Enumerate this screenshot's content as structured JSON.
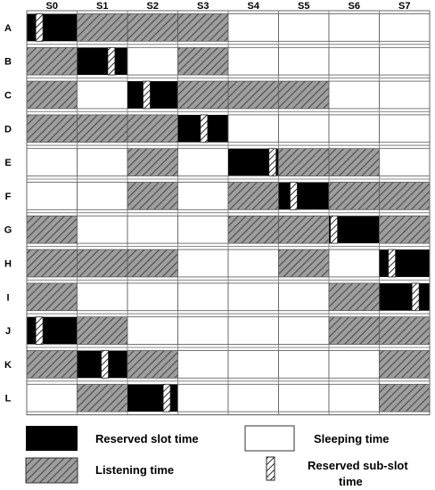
{
  "columns": [
    "S0",
    "S1",
    "S2",
    "S3",
    "S4",
    "S5",
    "S6",
    "S7"
  ],
  "rows": [
    {
      "label": "A",
      "cells": [
        "reserved",
        "listening",
        "listening",
        "listening",
        "sleeping",
        "sleeping",
        "sleeping",
        "sleeping"
      ],
      "subslot_col": 0,
      "subslot_pos": 0.25
    },
    {
      "label": "B",
      "cells": [
        "listening",
        "reserved",
        "sleeping",
        "listening",
        "sleeping",
        "sleeping",
        "sleeping",
        "sleeping"
      ],
      "subslot_col": 1,
      "subslot_pos": 0.68
    },
    {
      "label": "C",
      "cells": [
        "listening",
        "sleeping",
        "reserved",
        "listening",
        "listening",
        "listening",
        "sleeping",
        "sleeping"
      ],
      "subslot_col": 2,
      "subslot_pos": 0.38
    },
    {
      "label": "D",
      "cells": [
        "listening",
        "listening",
        "listening",
        "reserved",
        "sleeping",
        "sleeping",
        "sleeping",
        "sleeping"
      ],
      "subslot_col": 3,
      "subslot_pos": 0.52
    },
    {
      "label": "E",
      "cells": [
        "sleeping",
        "sleeping",
        "listening",
        "sleeping",
        "reserved",
        "listening",
        "listening",
        "sleeping"
      ],
      "subslot_col": 4,
      "subslot_pos": 0.88
    },
    {
      "label": "F",
      "cells": [
        "sleeping",
        "sleeping",
        "listening",
        "sleeping",
        "listening",
        "reserved",
        "listening",
        "listening"
      ],
      "subslot_col": 5,
      "subslot_pos": 0.3
    },
    {
      "label": "G",
      "cells": [
        "listening",
        "sleeping",
        "sleeping",
        "sleeping",
        "listening",
        "listening",
        "reserved",
        "listening"
      ],
      "subslot_col": 6,
      "subslot_pos": 0.1
    },
    {
      "label": "H",
      "cells": [
        "listening",
        "listening",
        "listening",
        "sleeping",
        "sleeping",
        "listening",
        "sleeping",
        "reserved"
      ],
      "subslot_col": 7,
      "subslot_pos": 0.25
    },
    {
      "label": "I",
      "cells": [
        "listening",
        "sleeping",
        "sleeping",
        "sleeping",
        "sleeping",
        "sleeping",
        "listening",
        "reserved"
      ],
      "subslot_col": 7,
      "subslot_pos": 0.72
    },
    {
      "label": "J",
      "cells": [
        "reserved",
        "listening",
        "sleeping",
        "sleeping",
        "sleeping",
        "sleeping",
        "listening",
        "listening"
      ],
      "subslot_col": 0,
      "subslot_pos": 0.25
    },
    {
      "label": "K",
      "cells": [
        "listening",
        "reserved",
        "listening",
        "sleeping",
        "sleeping",
        "sleeping",
        "sleeping",
        "listening"
      ],
      "subslot_col": 1,
      "subslot_pos": 0.55
    },
    {
      "label": "L",
      "cells": [
        "sleeping",
        "listening",
        "reserved",
        "sleeping",
        "sleeping",
        "sleeping",
        "sleeping",
        "listening"
      ],
      "subslot_col": 2,
      "subslot_pos": 0.78
    }
  ],
  "legend": {
    "reserved": "Reserved slot time",
    "sleeping": "Sleeping time",
    "listening": "Listening time",
    "subslot_line1": "Reserved sub-slot",
    "subslot_line2": "time"
  },
  "colors": {
    "reserved": "#000000",
    "listening": "#9e9e9e",
    "hatch": "#4a4a4a",
    "sleeping": "#ffffff",
    "grid": "#8c8c8c"
  }
}
